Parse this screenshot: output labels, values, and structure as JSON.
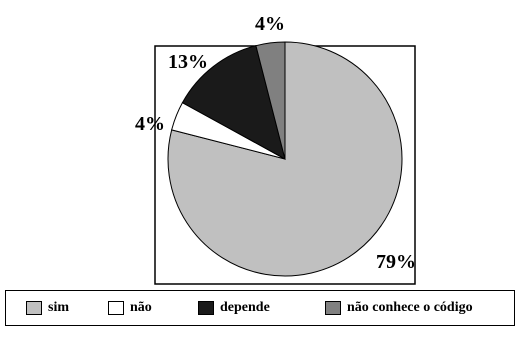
{
  "chart_data": {
    "type": "pie",
    "categories": [
      "sim",
      "não",
      "depende",
      "não conhece o código"
    ],
    "values": [
      79,
      4,
      13,
      4
    ],
    "data_labels": [
      "79%",
      "4%",
      "13%",
      "4%"
    ],
    "colors": [
      "#c0c0c0",
      "#ffffff",
      "#1a1a1a",
      "#808080"
    ],
    "title": "",
    "legend": "bottom",
    "start": "12 o'clock",
    "direction": "clockwise"
  },
  "legend": {
    "items": [
      {
        "label": "sim",
        "color": "#c0c0c0"
      },
      {
        "label": "não",
        "color": "#ffffff"
      },
      {
        "label": "depende",
        "color": "#1a1a1a"
      },
      {
        "label": "não conhece o código",
        "color": "#808080"
      }
    ]
  }
}
